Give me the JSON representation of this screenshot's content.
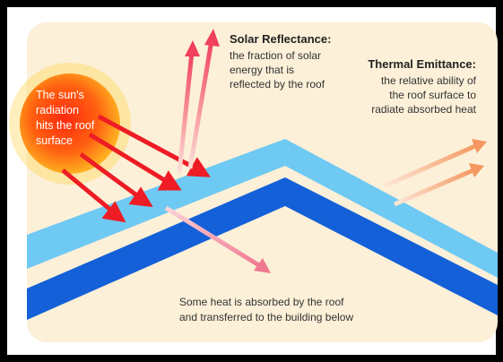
{
  "sun": {
    "lines": [
      "The sun's",
      "radiation",
      "hits the roof",
      "surface"
    ]
  },
  "solar_reflectance": {
    "title": "Solar Reflectance:",
    "lines": [
      "the fraction of solar",
      "energy that is",
      "reflected by the roof"
    ]
  },
  "thermal_emittance": {
    "title": "Thermal Emittance:",
    "lines": [
      "the relative ability of",
      "the roof surface to",
      "radiate absorbed heat"
    ]
  },
  "absorbed": {
    "lines": [
      "Some heat is absorbed by the roof",
      "and transferred to the building below"
    ]
  }
}
